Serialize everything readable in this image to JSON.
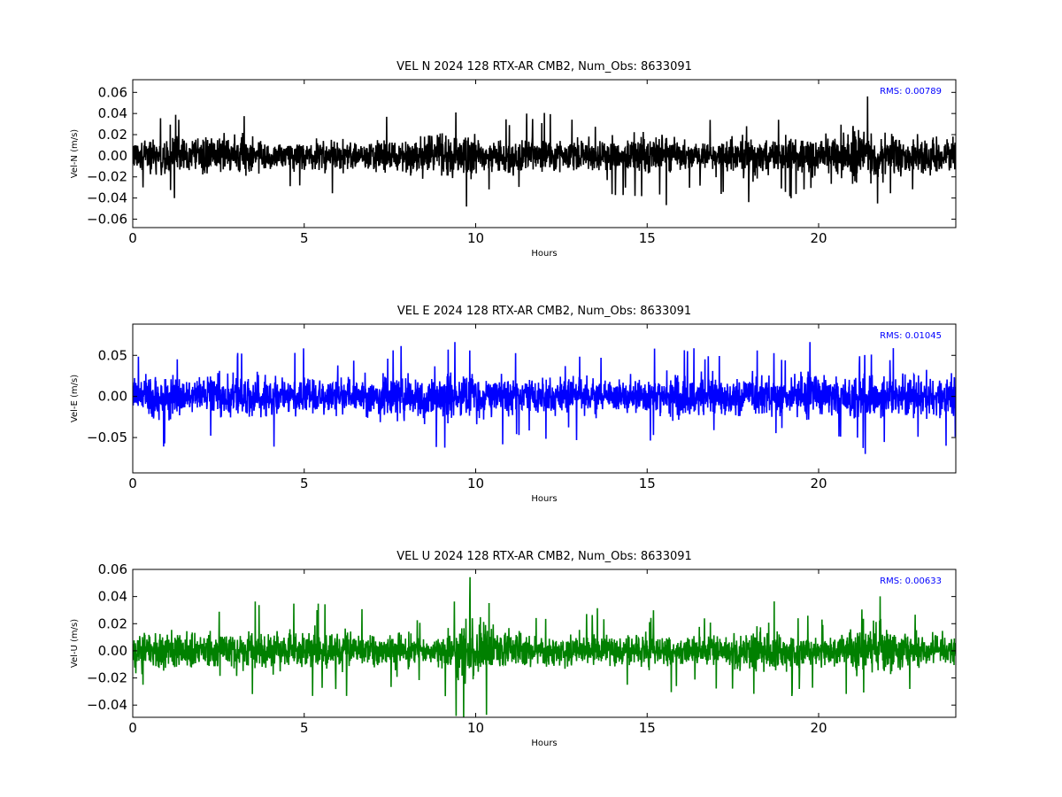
{
  "chart_data": [
    {
      "type": "line",
      "title": "VEL N 2024 128 RTX-AR  CMB2, Num_Obs: 8633091",
      "xlabel": "Hours",
      "ylabel": "Vel-N (m/s)",
      "annotation": "RMS:  0.00789",
      "annotation_color": "#0000ff",
      "series_color": "#000000",
      "xlim": [
        0,
        24
      ],
      "ylim": [
        -0.068,
        0.072
      ],
      "xticks": [
        0,
        5,
        10,
        15,
        20
      ],
      "yticks": [
        -0.06,
        -0.04,
        -0.02,
        0.0,
        0.02,
        0.04,
        0.06
      ],
      "ytick_labels": [
        "−0.06",
        "−0.04",
        "−0.02",
        "0.00",
        "0.02",
        "0.04",
        "0.06"
      ],
      "grid": false,
      "envelope": {
        "hours": [
          0,
          1,
          2,
          2.9,
          3.5,
          4.5,
          5.5,
          6.5,
          7.5,
          8.5,
          9.0,
          9.5,
          10.5,
          11.5,
          12.0,
          13.0,
          14.0,
          15.0,
          15.5,
          16.5,
          17.5,
          18.0,
          19.0,
          20.0,
          20.5,
          21.0,
          21.5,
          22.5,
          23.5,
          24
        ],
        "amplitude": [
          0.032,
          0.03,
          0.027,
          0.04,
          0.028,
          0.022,
          0.03,
          0.024,
          0.03,
          0.036,
          0.046,
          0.04,
          0.024,
          0.028,
          0.03,
          0.026,
          0.028,
          0.034,
          0.033,
          0.024,
          0.032,
          0.036,
          0.032,
          0.03,
          0.036,
          0.048,
          0.038,
          0.03,
          0.03,
          0.034
        ]
      }
    },
    {
      "type": "line",
      "title": "VEL E 2024 128 RTX-AR  CMB2, Num_Obs: 8633091",
      "xlabel": "Hours",
      "ylabel": "Vel-E (m/s)",
      "annotation": "RMS:  0.01045",
      "annotation_color": "#0000ff",
      "series_color": "#0000ff",
      "xlim": [
        0,
        24
      ],
      "ylim": [
        -0.093,
        0.088
      ],
      "xticks": [
        0,
        5,
        10,
        15,
        20
      ],
      "yticks": [
        -0.05,
        0.0,
        0.05
      ],
      "ytick_labels": [
        "−0.05",
        "0.00",
        "0.05"
      ],
      "grid": false,
      "envelope": {
        "hours": [
          0,
          0.7,
          1.5,
          2.5,
          3.5,
          4.5,
          5.5,
          6.5,
          7.5,
          8.5,
          9.0,
          10.0,
          11.0,
          12.0,
          13.0,
          14.0,
          15.0,
          16.0,
          17.0,
          18.0,
          19.0,
          19.7,
          20.5,
          21.5,
          22.5,
          23.5,
          24
        ],
        "amplitude": [
          0.04,
          0.05,
          0.042,
          0.045,
          0.048,
          0.04,
          0.042,
          0.036,
          0.045,
          0.052,
          0.05,
          0.05,
          0.038,
          0.04,
          0.038,
          0.036,
          0.04,
          0.042,
          0.042,
          0.045,
          0.04,
          0.055,
          0.042,
          0.052,
          0.04,
          0.042,
          0.044
        ]
      }
    },
    {
      "type": "line",
      "title": "VEL U 2024 128 RTX-AR  CMB2, Num_Obs: 8633091",
      "xlabel": "Hours",
      "ylabel": "Vel-U (m/s)",
      "annotation": "RMS:  0.00633",
      "annotation_color": "#0000ff",
      "series_color": "#008000",
      "xlim": [
        0,
        24
      ],
      "ylim": [
        -0.049,
        0.06
      ],
      "xticks": [
        0,
        5,
        10,
        15,
        20
      ],
      "yticks": [
        -0.04,
        -0.02,
        0.0,
        0.02,
        0.04,
        0.06
      ],
      "ytick_labels": [
        "−0.04",
        "−0.02",
        "0.00",
        "0.02",
        "0.04",
        "0.06"
      ],
      "grid": false,
      "envelope": {
        "hours": [
          0,
          1,
          2,
          3,
          4,
          5,
          6,
          7,
          8,
          8.7,
          9.5,
          10.0,
          10.5,
          11.5,
          12.5,
          13.5,
          14.5,
          15.5,
          16.5,
          17.5,
          18.5,
          19.5,
          20.3,
          21.0,
          21.6,
          22.5,
          23.5,
          24
        ],
        "amplitude": [
          0.024,
          0.024,
          0.022,
          0.024,
          0.026,
          0.024,
          0.026,
          0.02,
          0.02,
          0.014,
          0.036,
          0.04,
          0.03,
          0.022,
          0.02,
          0.022,
          0.02,
          0.024,
          0.018,
          0.022,
          0.028,
          0.022,
          0.018,
          0.028,
          0.034,
          0.024,
          0.02,
          0.02
        ]
      }
    }
  ]
}
